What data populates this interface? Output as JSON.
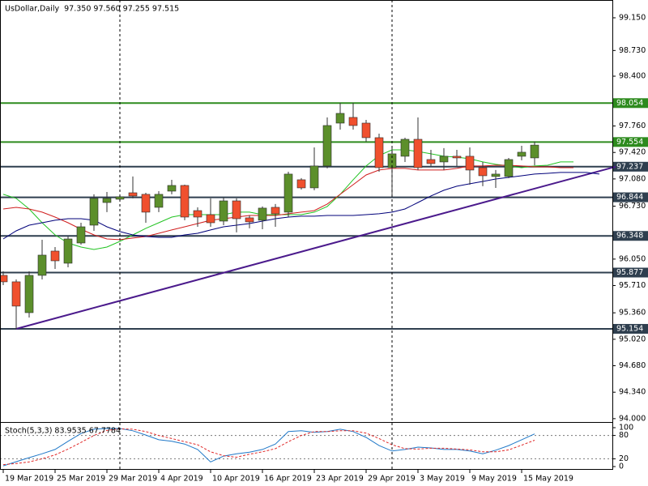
{
  "chart_data": [
    {
      "type": "candlestick",
      "title": "UsDollar,Daily  97.350 97.560 97.255 97.515",
      "xlim": [
        -0.25,
        47
      ],
      "ylim": [
        93.957,
        99.337
      ],
      "xticks": [
        {
          "value": 0,
          "label": "19 Mar 2019"
        },
        {
          "value": 4,
          "label": "25 Mar 2019"
        },
        {
          "value": 8,
          "label": "29 Mar 2019"
        },
        {
          "value": 12,
          "label": "4 Apr 2019"
        },
        {
          "value": 16,
          "label": "10 Apr 2019"
        },
        {
          "value": 20,
          "label": "16 Apr 2019"
        },
        {
          "value": 24,
          "label": "23 Apr 2019"
        },
        {
          "value": 28,
          "label": "29 Apr 2019"
        },
        {
          "value": 32,
          "label": "3 May 2019"
        },
        {
          "value": 36,
          "label": "9 May 2019"
        },
        {
          "value": 40,
          "label": "15 May 2019"
        }
      ],
      "yticks": [
        {
          "value": 99.15,
          "label": "99.150"
        },
        {
          "value": 98.73,
          "label": "98.730"
        },
        {
          "value": 98.4,
          "label": "98.400"
        },
        {
          "value": 97.76,
          "label": "97.760"
        },
        {
          "value": 97.42,
          "label": "97.420"
        },
        {
          "value": 97.08,
          "label": "97.080"
        },
        {
          "value": 96.73,
          "label": "96.730"
        },
        {
          "value": 96.05,
          "label": "96.050"
        },
        {
          "value": 95.71,
          "label": "95.710"
        },
        {
          "value": 95.36,
          "label": "95.360"
        },
        {
          "value": 95.02,
          "label": "95.020"
        },
        {
          "value": 94.68,
          "label": "94.680"
        },
        {
          "value": 94.34,
          "label": "94.340"
        },
        {
          "value": 94,
          "label": "94.000"
        }
      ],
      "levels": [
        98.054,
        97.554,
        97.237,
        96.844,
        96.348,
        95.877,
        95.154
      ],
      "level_colors": [
        "#2e8b1e",
        "#2e8b1e",
        "#2f3f4f",
        "#2f3f4f",
        "#2f3f4f",
        "#2f3f4f",
        "#2f3f4f"
      ],
      "trendline": {
        "x": [
          1,
          47.25
        ],
        "y": [
          95.154,
          97.237
        ],
        "color": "#4b1a8c"
      },
      "candles": {
        "up_color": "#5c8f2b",
        "down_color": "#f0502e",
        "open": [
          95.841,
          95.758,
          95.362,
          95.841,
          96.153,
          95.997,
          96.257,
          96.486,
          96.777,
          96.819,
          96.902,
          96.882,
          96.715,
          96.923,
          96.996,
          96.673,
          96.621,
          96.538,
          96.798,
          96.58,
          96.549,
          96.715,
          96.653,
          97.069,
          96.965,
          97.246,
          97.797,
          97.87,
          97.797,
          97.61,
          97.225,
          97.371,
          97.589,
          97.329,
          97.298,
          97.371,
          97.371,
          97.225,
          97.111,
          97.111,
          97.371,
          97.35
        ],
        "high": [
          95.893,
          95.789,
          95.893,
          96.299,
          96.205,
          96.34,
          96.517,
          96.882,
          96.913,
          96.861,
          97.111,
          96.902,
          96.923,
          97.069,
          97.006,
          96.715,
          96.83,
          96.84,
          96.83,
          96.611,
          96.726,
          96.757,
          97.173,
          97.09,
          97.485,
          97.87,
          98.057,
          98.057,
          97.839,
          97.662,
          97.506,
          97.61,
          97.87,
          97.454,
          97.475,
          97.454,
          97.485,
          97.298,
          97.194,
          97.35,
          97.506,
          97.56
        ],
        "low": [
          95.716,
          95.154,
          95.3,
          95.789,
          95.924,
          95.945,
          96.236,
          96.413,
          96.653,
          96.798,
          96.83,
          96.517,
          96.653,
          96.882,
          96.549,
          96.465,
          96.465,
          96.486,
          96.393,
          96.445,
          96.434,
          96.465,
          96.59,
          96.944,
          96.934,
          97.215,
          97.714,
          97.714,
          97.558,
          97.173,
          96.882,
          97.298,
          97.194,
          97.246,
          97.194,
          97.246,
          97.006,
          96.986,
          96.965,
          97.09,
          97.319,
          97.255
        ],
        "close": [
          95.758,
          95.446,
          95.841,
          96.101,
          96.028,
          96.309,
          96.465,
          96.83,
          96.83,
          96.85,
          96.861,
          96.653,
          96.882,
          96.996,
          96.59,
          96.59,
          96.517,
          96.798,
          96.569,
          96.528,
          96.705,
          96.632,
          97.142,
          96.965,
          97.246,
          97.766,
          97.922,
          97.766,
          97.61,
          97.225,
          97.402,
          97.589,
          97.225,
          97.277,
          97.371,
          97.35,
          97.194,
          97.121,
          97.142,
          97.329,
          97.423,
          97.515
        ]
      },
      "series": [
        {
          "color": "#22c322",
          "values": [
            96.882,
            96.83,
            96.694,
            96.517,
            96.361,
            96.257,
            96.205,
            96.174,
            96.205,
            96.278,
            96.361,
            96.445,
            96.517,
            96.59,
            96.621,
            96.621,
            96.621,
            96.621,
            96.653,
            96.653,
            96.621,
            96.621,
            96.621,
            96.621,
            96.653,
            96.726,
            96.882,
            97.069,
            97.246,
            97.381,
            97.454,
            97.454,
            97.433,
            97.402,
            97.371,
            97.36,
            97.339,
            97.298,
            97.267,
            97.246,
            97.225,
            97.246,
            97.256,
            97.298,
            97.298
          ]
        },
        {
          "color": "#d01e1e",
          "values": [
            96.694,
            96.715,
            96.694,
            96.653,
            96.59,
            96.517,
            96.434,
            96.361,
            96.309,
            96.299,
            96.32,
            96.34,
            96.382,
            96.424,
            96.465,
            96.507,
            96.549,
            96.569,
            96.59,
            96.611,
            96.611,
            96.611,
            96.632,
            96.653,
            96.673,
            96.757,
            96.882,
            97.006,
            97.131,
            97.194,
            97.215,
            97.215,
            97.194,
            97.194,
            97.194,
            97.215,
            97.246,
            97.246,
            97.256,
            97.256,
            97.246,
            97.235,
            97.235,
            97.225,
            97.225
          ]
        },
        {
          "color": "#00007a",
          "values": [
            96.309,
            96.413,
            96.486,
            96.517,
            96.549,
            96.569,
            96.569,
            96.549,
            96.465,
            96.403,
            96.361,
            96.34,
            96.33,
            96.33,
            96.361,
            96.382,
            96.424,
            96.465,
            96.486,
            96.507,
            96.538,
            96.569,
            96.59,
            96.601,
            96.601,
            96.611,
            96.611,
            96.611,
            96.621,
            96.632,
            96.653,
            96.694,
            96.777,
            96.861,
            96.934,
            96.986,
            97.017,
            97.048,
            97.079,
            97.1,
            97.121,
            97.142,
            97.152,
            97.163,
            97.163,
            97.163,
            97.142
          ]
        }
      ]
    },
    {
      "type": "line",
      "title": "Stoch(5,3,3) 83.9535 67.7784",
      "xlim": [
        -0.25,
        47
      ],
      "ylim": [
        -8.3,
        112.5
      ],
      "yticks": [
        100,
        80,
        20,
        0
      ],
      "levels": [
        80,
        20
      ],
      "series": [
        {
          "color": "#1f78c8",
          "dash": false,
          "values": [
            2,
            12.5,
            23,
            33,
            44,
            65,
            85,
            96,
            98,
            98,
            92,
            81,
            69,
            65,
            58,
            44,
            12,
            27,
            33,
            37,
            44,
            58,
            90,
            92,
            88,
            90,
            96,
            90,
            75,
            54,
            40,
            44,
            50,
            48,
            44,
            44,
            40,
            33,
            42,
            54,
            69,
            83.9535
          ]
        },
        {
          "color": "#e02828",
          "dash": true,
          "values": [
            5,
            8,
            12,
            20,
            30,
            45,
            62,
            80,
            93,
            97,
            96,
            90,
            80,
            72,
            64,
            56,
            38,
            28,
            24,
            32,
            38,
            46,
            64,
            80,
            90,
            90,
            92,
            92,
            86,
            72,
            56,
            46,
            45,
            47,
            47,
            45,
            43,
            38,
            38,
            43,
            55,
            67.7784
          ]
        }
      ]
    }
  ]
}
